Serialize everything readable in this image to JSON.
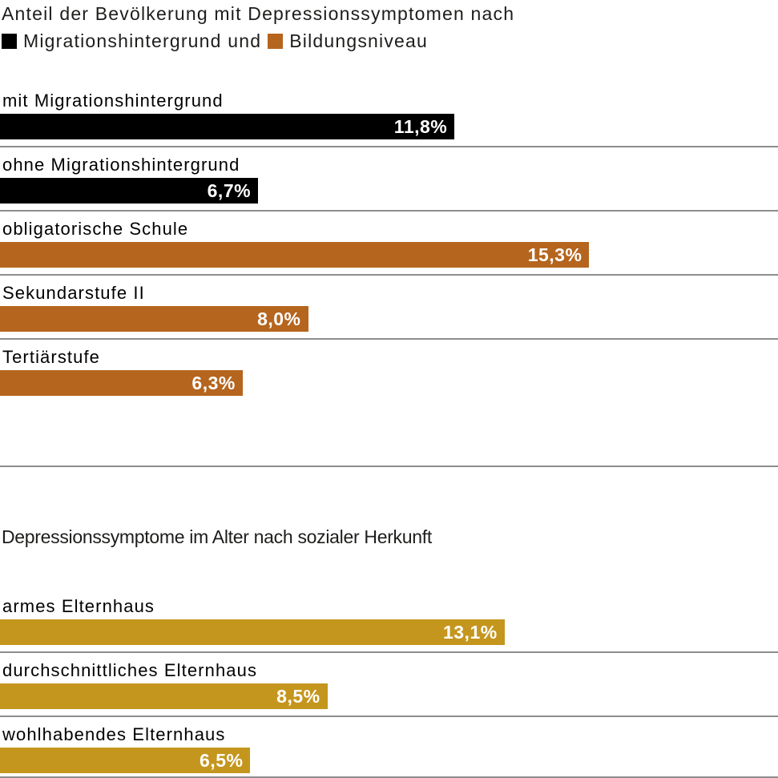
{
  "colors": {
    "background": "#ffffff",
    "black_bar": "#000000",
    "orange_bar": "#b5651e",
    "gold_bar": "#c5961d",
    "divider": "#8d8d8d",
    "bar_value_text": "#ffffff",
    "title_text": "#1d1d1b"
  },
  "chart_data": [
    {
      "type": "bar",
      "orientation": "horizontal",
      "title": "Anteil der Bevölkerung mit Depressionssymptomen nach",
      "legend": [
        {
          "label": "Migrationshintergrund und",
          "color": "#000000"
        },
        {
          "label": "Bildungsniveau",
          "color": "#b5651e"
        }
      ],
      "legend_position": "below-title-inline",
      "xlim": [
        0,
        20.2
      ],
      "value_suffix": "%",
      "grid": false,
      "bars": [
        {
          "label": "mit Migrationshintergrund",
          "value": 11.8,
          "display": "11,8%",
          "color": "#000000",
          "divider_after": true
        },
        {
          "label": "ohne Migrationshintergrund",
          "value": 6.7,
          "display": "6,7%",
          "color": "#000000",
          "divider_after": true
        },
        {
          "label": "obligatorische Schule",
          "value": 15.3,
          "display": "15,3%",
          "color": "#b5651e",
          "divider_after": true
        },
        {
          "label": "Sekundarstufe II",
          "value": 8.0,
          "display": "8,0%",
          "color": "#b5651e",
          "divider_after": true
        },
        {
          "label": "Tertiärstufe",
          "value": 6.3,
          "display": "6,3%",
          "color": "#b5651e",
          "divider_after": false
        }
      ]
    },
    {
      "type": "bar",
      "orientation": "horizontal",
      "title": "Depressionssymptome im Alter nach sozialer Herkunft",
      "xlim": [
        0,
        20.2
      ],
      "value_suffix": "%",
      "grid": false,
      "bars": [
        {
          "label": "armes Elternhaus",
          "value": 13.1,
          "display": "13,1%",
          "color": "#c5961d",
          "divider_after": true
        },
        {
          "label": "durchschnittliches Elternhaus",
          "value": 8.5,
          "display": "8,5%",
          "color": "#c5961d",
          "divider_after": true
        },
        {
          "label": "wohlhabendes Elternhaus",
          "value": 6.5,
          "display": "6,5%",
          "color": "#c5961d",
          "divider_after": true
        }
      ]
    }
  ]
}
